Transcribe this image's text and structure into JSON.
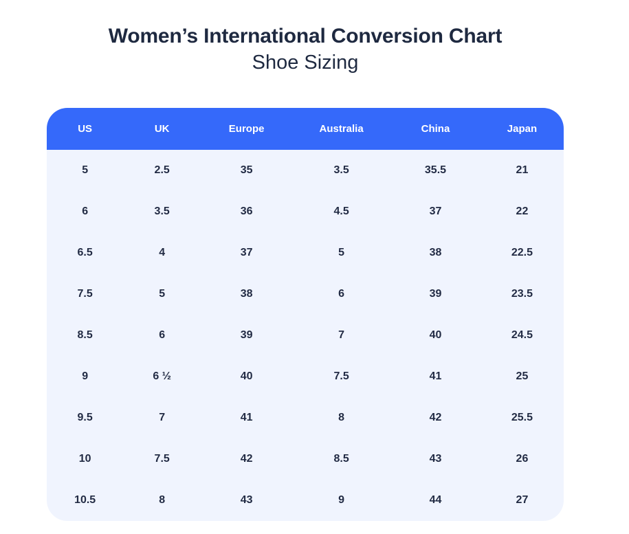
{
  "page": {
    "title": "Women’s International Conversion Chart",
    "subtitle": "Shoe Sizing"
  },
  "colors": {
    "header_bg": "#3569FA",
    "header_text": "#FFFFFF",
    "body_bg": "#F0F4FE",
    "cell_text": "#222B44",
    "title_text": "#1E2940",
    "page_bg": "#FFFFFF"
  },
  "chart_data": {
    "type": "table",
    "title": "Women’s International Conversion Chart",
    "subtitle": "Shoe Sizing",
    "columns": [
      "US",
      "UK",
      "Europe",
      "Australia",
      "China",
      "Japan"
    ],
    "column_width_percents": [
      14.8,
      15.0,
      17.7,
      19.0,
      17.4,
      16.1
    ],
    "rows": [
      [
        "5",
        "2.5",
        "35",
        "3.5",
        "35.5",
        "21"
      ],
      [
        "6",
        "3.5",
        "36",
        "4.5",
        "37",
        "22"
      ],
      [
        "6.5",
        "4",
        "37",
        "5",
        "38",
        "22.5"
      ],
      [
        "7.5",
        "5",
        "38",
        "6",
        "39",
        "23.5"
      ],
      [
        "8.5",
        "6",
        "39",
        "7",
        "40",
        "24.5"
      ],
      [
        "9",
        "6 ½",
        "40",
        "7.5",
        "41",
        "25"
      ],
      [
        "9.5",
        "7",
        "41",
        "8",
        "42",
        "25.5"
      ],
      [
        "10",
        "7.5",
        "42",
        "8.5",
        "43",
        "26"
      ],
      [
        "10.5",
        "8",
        "43",
        "9",
        "44",
        "27"
      ]
    ]
  }
}
